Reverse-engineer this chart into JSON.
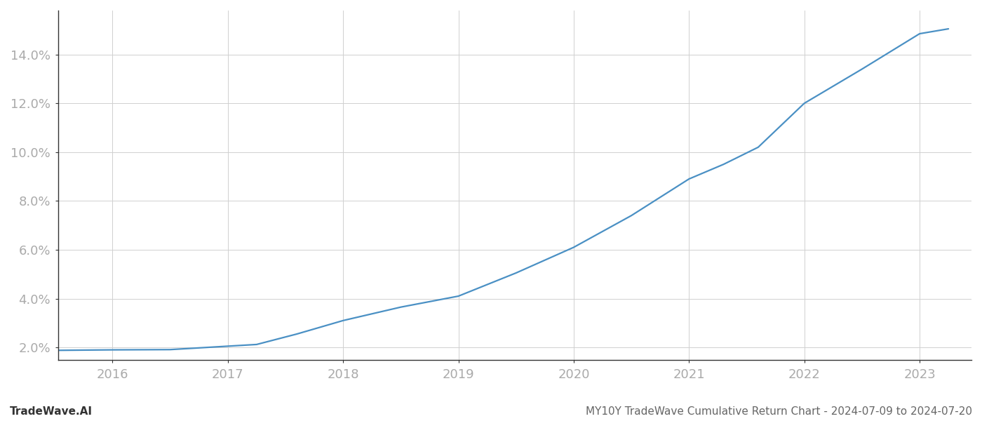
{
  "x_years": [
    2015.53,
    2016.0,
    2016.5,
    2017.0,
    2017.25,
    2017.6,
    2018.0,
    2018.5,
    2019.0,
    2019.5,
    2020.0,
    2020.5,
    2021.0,
    2021.3,
    2021.6,
    2022.0,
    2022.5,
    2023.0,
    2023.25
  ],
  "y_values": [
    1.88,
    1.9,
    1.91,
    2.05,
    2.12,
    2.55,
    3.1,
    3.65,
    4.1,
    5.05,
    6.1,
    7.4,
    8.9,
    9.5,
    10.2,
    12.0,
    13.4,
    14.85,
    15.05
  ],
  "line_color": "#4a90c4",
  "line_width": 1.6,
  "background_color": "#ffffff",
  "grid_color": "#d0d0d0",
  "footer_left": "TradeWave.AI",
  "footer_right": "MY10Y TradeWave Cumulative Return Chart - 2024-07-09 to 2024-07-20",
  "x_ticks": [
    2016,
    2017,
    2018,
    2019,
    2020,
    2021,
    2022,
    2023
  ],
  "y_ticks": [
    2.0,
    4.0,
    6.0,
    8.0,
    10.0,
    12.0,
    14.0
  ],
  "xlim": [
    2015.53,
    2023.45
  ],
  "ylim": [
    1.5,
    15.8
  ],
  "tick_color": "#aaaaaa",
  "tick_fontsize": 13,
  "footer_fontsize": 11,
  "spine_color": "#333333"
}
